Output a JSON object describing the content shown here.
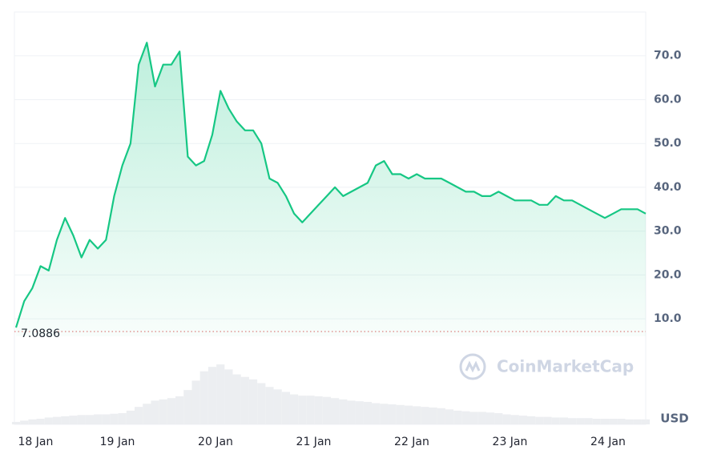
{
  "chart_data": {
    "type": "line",
    "categories": [
      null,
      null,
      "18 Jan",
      null,
      null,
      null,
      null,
      null,
      null,
      null,
      null,
      null,
      "19 Jan",
      null,
      null,
      null,
      null,
      null,
      null,
      null,
      null,
      null,
      null,
      null,
      "20 Jan",
      null,
      null,
      null,
      null,
      null,
      null,
      null,
      null,
      null,
      null,
      null,
      "21 Jan",
      null,
      null,
      null,
      null,
      null,
      null,
      null,
      null,
      null,
      null,
      null,
      "22 Jan",
      null,
      null,
      null,
      null,
      null,
      null,
      null,
      null,
      null,
      null,
      null,
      "23 Jan",
      null,
      null,
      null,
      null,
      null,
      null,
      null,
      null,
      null,
      null,
      null,
      "24 Jan",
      null,
      null,
      null,
      null,
      null
    ],
    "series": [
      {
        "color": "#16c784",
        "values": [
          8,
          14,
          17,
          22,
          21,
          28,
          33,
          29,
          24,
          28,
          26,
          28,
          38,
          45,
          50,
          68,
          73,
          63,
          68,
          68,
          71,
          47,
          45,
          46,
          52,
          62,
          58,
          55,
          53,
          53,
          50,
          42,
          41,
          38,
          34,
          32,
          34,
          36,
          38,
          40,
          38,
          39,
          40,
          41,
          45,
          46,
          43,
          43,
          42,
          43,
          42,
          42,
          42,
          41,
          40,
          39,
          39,
          38,
          38,
          39,
          38,
          37,
          37,
          37,
          36,
          36,
          38,
          37,
          37,
          36,
          35,
          34,
          33,
          34,
          35,
          35,
          35,
          34
        ]
      }
    ],
    "volume": {
      "color": "#eceef1",
      "values": [
        4,
        6,
        8,
        9,
        11,
        12,
        13,
        14,
        15,
        15,
        16,
        16,
        17,
        18,
        22,
        28,
        33,
        38,
        40,
        42,
        45,
        55,
        70,
        85,
        92,
        96,
        88,
        80,
        76,
        72,
        66,
        60,
        56,
        52,
        48,
        46,
        46,
        45,
        44,
        42,
        40,
        38,
        37,
        36,
        34,
        33,
        32,
        31,
        30,
        29,
        28,
        27,
        26,
        24,
        22,
        21,
        20,
        20,
        19,
        18,
        16,
        15,
        14,
        13,
        12,
        12,
        11,
        11,
        10,
        10,
        10,
        9,
        9,
        9,
        9,
        8,
        8,
        8
      ]
    },
    "volume_ylim": [
      0,
      100
    ],
    "ylim": [
      6,
      80
    ],
    "yticks": [
      {
        "value": 10,
        "label": "10.0"
      },
      {
        "value": 20,
        "label": "20.0"
      },
      {
        "value": 30,
        "label": "30.0"
      },
      {
        "value": 40,
        "label": "40.0"
      },
      {
        "value": 50,
        "label": "50.0"
      },
      {
        "value": 60,
        "label": "60.0"
      },
      {
        "value": 70,
        "label": "70.0"
      }
    ],
    "grid": true,
    "reference_line": 7.0886,
    "currency": "USD",
    "watermark": "CoinMarketCap"
  }
}
